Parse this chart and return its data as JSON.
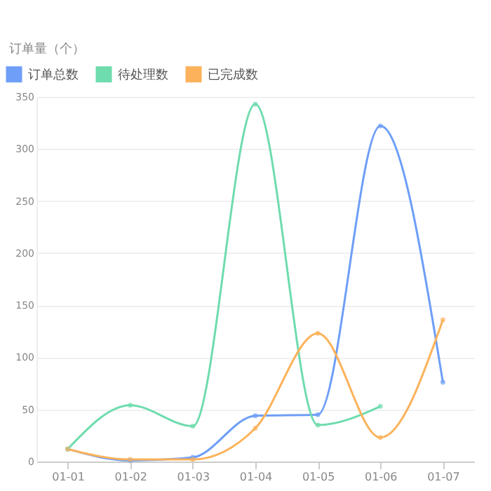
{
  "chart_data": {
    "type": "line",
    "ylabel": "订单量（个）",
    "categories": [
      "01-01",
      "01-02",
      "01-03",
      "01-04",
      "01-05",
      "01-06",
      "01-07"
    ],
    "series": [
      {
        "name": "订单总数",
        "color": "#6e9ef7",
        "values": [
          12,
          1,
          4,
          44,
          45,
          322,
          76
        ]
      },
      {
        "name": "待处理数",
        "color": "#6fdcae",
        "values": [
          12,
          54,
          34,
          343,
          35,
          53,
          null
        ]
      },
      {
        "name": "已完成数",
        "color": "#fbb25a",
        "values": [
          12,
          2,
          2,
          32,
          123,
          23,
          136
        ]
      }
    ],
    "ylim": [
      0,
      350
    ],
    "yticks": [
      0,
      50,
      100,
      150,
      200,
      250,
      300,
      350
    ],
    "grid": "y",
    "legend": "top left",
    "marker": "circle",
    "line_style": "solid"
  }
}
